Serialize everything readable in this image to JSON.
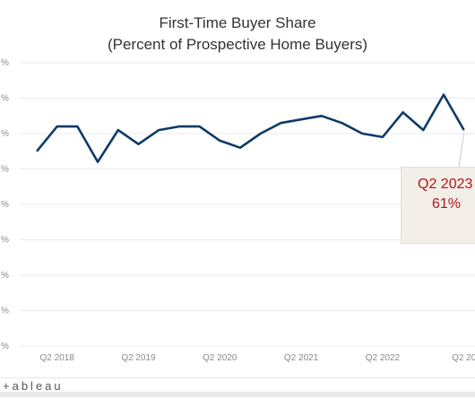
{
  "title_line1": "First-Time Buyer Share",
  "title_line2": "(Percent of Prospective Home Buyers)",
  "callout": {
    "period": "Q2 2023",
    "value": "61%"
  },
  "footer": {
    "brand": "+ableau"
  },
  "colors": {
    "line": "#0d3b66",
    "callout_text": "#b0161a",
    "callout_bg": "#f3eee8",
    "grid": "#ebebeb"
  },
  "chart_data": {
    "type": "line",
    "title": "First-Time Buyer Share (Percent of Prospective Home Buyers)",
    "xlabel": "",
    "ylabel": "",
    "x": [
      "Q1 2018",
      "Q2 2018",
      "Q3 2018",
      "Q4 2018",
      "Q1 2019",
      "Q2 2019",
      "Q3 2019",
      "Q4 2019",
      "Q1 2020",
      "Q2 2020",
      "Q3 2020",
      "Q4 2020",
      "Q1 2021",
      "Q2 2021",
      "Q3 2021",
      "Q4 2021",
      "Q1 2022",
      "Q2 2022",
      "Q3 2022",
      "Q4 2022",
      "Q1 2023",
      "Q2 2023"
    ],
    "x_tick_labels": [
      "Q2 2018",
      "Q2 2019",
      "Q2 2020",
      "Q2 2021",
      "Q2 2022",
      "Q2 20"
    ],
    "values": [
      55,
      62,
      62,
      52,
      61,
      57,
      61,
      62,
      62,
      58,
      56,
      60,
      63,
      64,
      65,
      63,
      60,
      59,
      66,
      61,
      71,
      61
    ],
    "y_tick_labels": [
      "%",
      "%",
      "%",
      "%",
      "%",
      "%",
      "%",
      "%",
      "%"
    ],
    "ylim": [
      0,
      80
    ],
    "grid": true
  }
}
